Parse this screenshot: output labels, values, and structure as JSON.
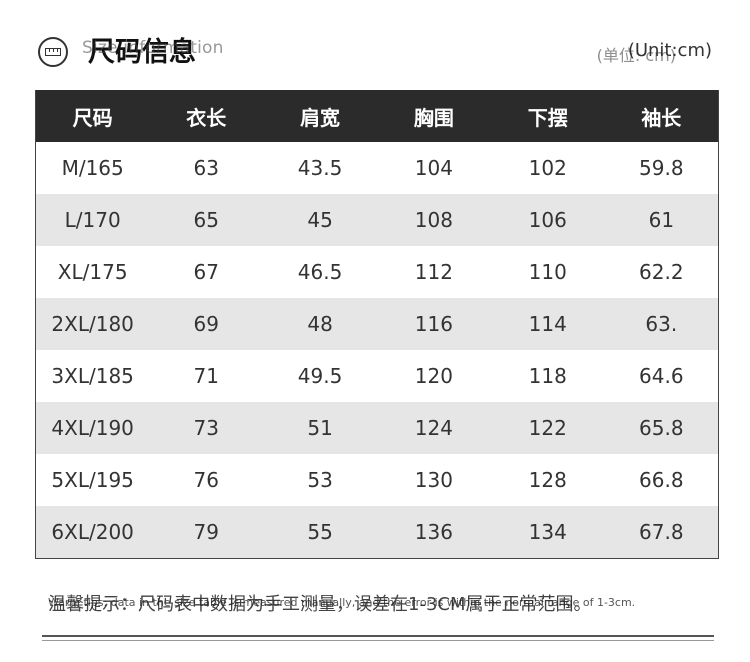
{
  "header": {
    "title_en": "Size information",
    "title_zh": "尺码信息",
    "unit_en": "(Unit:cm)",
    "unit_zh": "(单位: cm)"
  },
  "table": {
    "columns": [
      "尺码",
      "衣长",
      "肩宽",
      "胸围",
      "下摆",
      "袖长"
    ],
    "rows": [
      [
        "M/165",
        "63",
        "43.5",
        "104",
        "102",
        "59.8"
      ],
      [
        "L/170",
        "65",
        "45",
        "108",
        "106",
        "61"
      ],
      [
        "XL/175",
        "67",
        "46.5",
        "112",
        "110",
        "62.2"
      ],
      [
        "2XL/180",
        "69",
        "48",
        "116",
        "114",
        "63."
      ],
      [
        "3XL/185",
        "71",
        "49.5",
        "120",
        "118",
        "64.6"
      ],
      [
        "4XL/190",
        "73",
        "51",
        "124",
        "122",
        "65.8"
      ],
      [
        "5XL/195",
        "76",
        "53",
        "130",
        "128",
        "66.8"
      ],
      [
        "6XL/200",
        "79",
        "55",
        "136",
        "134",
        "67.8"
      ]
    ]
  },
  "footer": {
    "tip_zh": "温馨提示：尺码表中数据为手工测量，误差在1-3CM属于正常范围。",
    "tip_en": "Warm tips: data in the size table is measured manually, and the error is within the normal range of 1-3cm."
  }
}
